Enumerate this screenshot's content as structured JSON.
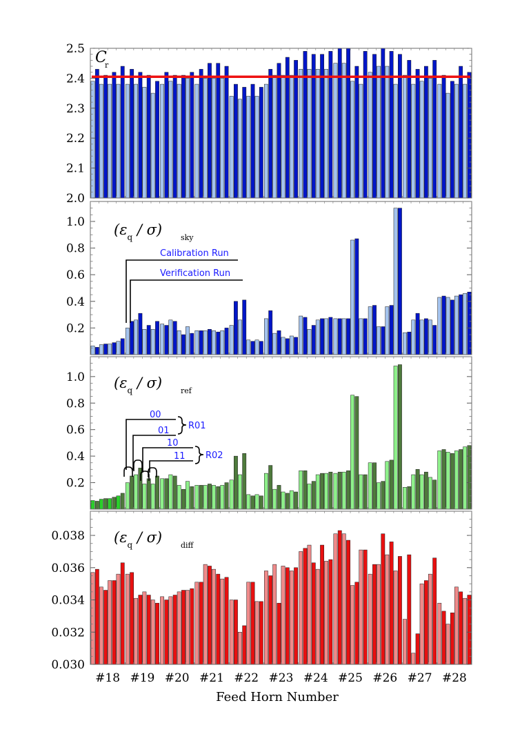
{
  "xlabel": "Feed Horn Number",
  "feed_horns": [
    "#18",
    "#19",
    "#20",
    "#21",
    "#22",
    "#23",
    "#24",
    "#25",
    "#26",
    "#27",
    "#28"
  ],
  "colors": {
    "blue_light": "#a4c3ee",
    "blue_dark": "#0016c8",
    "green_light": "#8ef08a",
    "green_dark": "#4e7a3c",
    "green_bright": "#2ad02a",
    "red_light": "#f08a8a",
    "red_dark": "#e81010",
    "ref_line": "#ee1111",
    "annotation": "#1a1aff"
  },
  "annotations": {
    "calibration_run": "Calibration Run",
    "verification_run": "Verification Run",
    "ch00": "00",
    "ch01": "01",
    "ch10": "10",
    "ch11": "11",
    "r01": "R01",
    "r02": "R02"
  },
  "chart_data": [
    {
      "type": "bar",
      "panel": "Cr",
      "label_main": "C",
      "label_sub": "r",
      "ylim": [
        2.0,
        2.5
      ],
      "yticks": [
        "2.0",
        "2.1",
        "2.2",
        "2.3",
        "2.4",
        "2.5"
      ],
      "reference_line": 2.405,
      "categories": [
        "#18",
        "#19",
        "#20",
        "#21",
        "#22",
        "#23",
        "#24",
        "#25",
        "#26",
        "#27",
        "#28"
      ],
      "series": [
        {
          "values": [
            [
              2.39,
              2.38,
              2.38,
              2.38
            ],
            [
              2.38,
              2.38,
              2.37,
              2.35
            ],
            [
              2.38,
              2.39,
              2.38,
              2.4
            ],
            [
              2.38,
              2.4,
              2.4,
              2.4
            ],
            [
              2.34,
              2.33,
              2.34,
              2.34
            ],
            [
              2.38,
              2.41,
              2.41,
              2.41
            ],
            [
              2.43,
              2.43,
              2.43,
              2.43
            ],
            [
              2.45,
              2.45,
              2.39,
              2.38
            ],
            [
              2.42,
              2.44,
              2.44,
              2.38
            ],
            [
              2.41,
              2.38,
              2.39,
              2.4
            ],
            [
              2.38,
              2.35,
              2.38,
              2.38
            ]
          ]
        },
        {
          "values": [
            [
              2.43,
              2.41,
              2.42,
              2.44
            ],
            [
              2.43,
              2.42,
              2.41,
              2.39
            ],
            [
              2.42,
              2.41,
              2.41,
              2.42
            ],
            [
              2.43,
              2.45,
              2.45,
              2.44
            ],
            [
              2.38,
              2.37,
              2.38,
              2.37
            ],
            [
              2.43,
              2.45,
              2.47,
              2.46
            ],
            [
              2.49,
              2.48,
              2.48,
              2.49
            ],
            [
              2.5,
              2.5,
              2.44,
              2.49
            ],
            [
              2.48,
              2.5,
              2.49,
              2.48
            ],
            [
              2.46,
              2.43,
              2.44,
              2.46
            ],
            [
              2.41,
              2.39,
              2.44,
              2.42
            ]
          ]
        }
      ]
    },
    {
      "type": "bar",
      "panel": "sky",
      "label_main": "(εq / σ)",
      "label_sub": "sky",
      "ylim": [
        0.0,
        1.15
      ],
      "yticks": [
        "0.2",
        "0.4",
        "0.6",
        "0.8",
        "1.0"
      ],
      "categories": [
        "#18",
        "#19",
        "#20",
        "#21",
        "#22",
        "#23",
        "#24",
        "#25",
        "#26",
        "#27",
        "#28"
      ],
      "series": [
        {
          "values": [
            [
              0.065,
              0.075,
              0.08,
              0.1
            ],
            [
              0.2,
              0.26,
              0.19,
              0.19
            ],
            [
              0.23,
              0.26,
              0.18,
              0.21
            ],
            [
              0.18,
              0.18,
              0.18,
              0.18
            ],
            [
              0.22,
              0.26,
              0.11,
              0.11
            ],
            [
              0.27,
              0.16,
              0.13,
              0.14
            ],
            [
              0.29,
              0.19,
              0.26,
              0.27
            ],
            [
              0.27,
              0.27,
              0.86,
              0.27
            ],
            [
              0.36,
              0.21,
              0.36,
              1.1
            ],
            [
              0.165,
              0.26,
              0.26,
              0.26
            ],
            [
              0.43,
              0.43,
              0.44,
              0.46
            ]
          ]
        },
        {
          "values": [
            [
              0.055,
              0.08,
              0.09,
              0.12
            ],
            [
              0.25,
              0.31,
              0.22,
              0.25
            ],
            [
              0.22,
              0.25,
              0.15,
              0.16
            ],
            [
              0.18,
              0.19,
              0.17,
              0.2
            ],
            [
              0.4,
              0.41,
              0.1,
              0.1
            ],
            [
              0.33,
              0.18,
              0.12,
              0.13
            ],
            [
              0.28,
              0.22,
              0.27,
              0.28
            ],
            [
              0.27,
              0.27,
              0.87,
              0.27
            ],
            [
              0.37,
              0.21,
              0.37,
              1.1
            ],
            [
              0.17,
              0.31,
              0.27,
              0.22
            ],
            [
              0.44,
              0.41,
              0.45,
              0.47
            ]
          ]
        }
      ]
    },
    {
      "type": "bar",
      "panel": "ref",
      "label_main": "(εq / σ)",
      "label_sub": "ref",
      "ylim": [
        0.0,
        1.15
      ],
      "yticks": [
        "0.2",
        "0.4",
        "0.6",
        "0.8",
        "1.0"
      ],
      "categories": [
        "#18",
        "#19",
        "#20",
        "#21",
        "#22",
        "#23",
        "#24",
        "#25",
        "#26",
        "#27",
        "#28"
      ],
      "series": [
        {
          "values": [
            [
              0.065,
              0.075,
              0.08,
              0.1
            ],
            [
              0.2,
              0.26,
              0.19,
              0.19
            ],
            [
              0.23,
              0.26,
              0.18,
              0.21
            ],
            [
              0.18,
              0.18,
              0.18,
              0.18
            ],
            [
              0.22,
              0.26,
              0.11,
              0.11
            ],
            [
              0.27,
              0.15,
              0.13,
              0.14
            ],
            [
              0.29,
              0.19,
              0.26,
              0.27
            ],
            [
              0.27,
              0.28,
              0.86,
              0.26
            ],
            [
              0.35,
              0.2,
              0.36,
              1.08
            ],
            [
              0.165,
              0.26,
              0.26,
              0.24
            ],
            [
              0.44,
              0.43,
              0.44,
              0.47
            ]
          ]
        },
        {
          "values": [
            [
              0.06,
              0.08,
              0.09,
              0.12
            ],
            [
              0.25,
              0.31,
              0.23,
              0.25
            ],
            [
              0.23,
              0.25,
              0.15,
              0.17
            ],
            [
              0.18,
              0.19,
              0.17,
              0.2
            ],
            [
              0.4,
              0.42,
              0.1,
              0.1
            ],
            [
              0.33,
              0.18,
              0.12,
              0.13
            ],
            [
              0.29,
              0.21,
              0.27,
              0.28
            ],
            [
              0.28,
              0.29,
              0.85,
              0.26
            ],
            [
              0.35,
              0.21,
              0.37,
              1.09
            ],
            [
              0.17,
              0.3,
              0.28,
              0.22
            ],
            [
              0.45,
              0.42,
              0.45,
              0.48
            ]
          ]
        }
      ]
    },
    {
      "type": "bar",
      "panel": "diff",
      "label_main": "(εq / σ)",
      "label_sub": "diff",
      "ylim": [
        0.03,
        0.0395
      ],
      "yticks": [
        "0.030",
        "0.032",
        "0.034",
        "0.036",
        "0.038"
      ],
      "categories": [
        "#18",
        "#19",
        "#20",
        "#21",
        "#22",
        "#23",
        "#24",
        "#25",
        "#26",
        "#27",
        "#28"
      ],
      "series": [
        {
          "values": [
            [
              0.0357,
              0.0348,
              0.0352,
              0.0356
            ],
            [
              0.0356,
              0.0341,
              0.0345,
              0.034
            ],
            [
              0.0342,
              0.0342,
              0.0345,
              0.0346
            ],
            [
              0.0351,
              0.0362,
              0.0359,
              0.0353
            ],
            [
              0.034,
              0.032,
              0.0351,
              0.0339
            ],
            [
              0.0358,
              0.0362,
              0.0361,
              0.0358
            ],
            [
              0.037,
              0.0374,
              0.0359,
              0.0364
            ],
            [
              0.0381,
              0.0381,
              0.0349,
              0.0371
            ],
            [
              0.0356,
              0.0362,
              0.0368,
              0.0358
            ],
            [
              0.0328,
              0.0307,
              0.035,
              0.0356
            ],
            [
              0.0338,
              0.0325,
              0.0348,
              0.0341
            ]
          ]
        },
        {
          "values": [
            [
              0.0359,
              0.0346,
              0.0352,
              0.0363
            ],
            [
              0.0357,
              0.0343,
              0.0343,
              0.0338
            ],
            [
              0.034,
              0.0343,
              0.0346,
              0.0347
            ],
            [
              0.0351,
              0.0361,
              0.0356,
              0.0354
            ],
            [
              0.034,
              0.0324,
              0.0351,
              0.0339
            ],
            [
              0.0355,
              0.0338,
              0.036,
              0.036
            ],
            [
              0.0372,
              0.0363,
              0.0374,
              0.0365
            ],
            [
              0.0383,
              0.0377,
              0.0351,
              0.0371
            ],
            [
              0.0362,
              0.0381,
              0.0376,
              0.0367
            ],
            [
              0.0368,
              0.0319,
              0.0352,
              0.0366
            ],
            [
              0.0333,
              0.0332,
              0.0345,
              0.0343
            ]
          ]
        }
      ]
    }
  ]
}
